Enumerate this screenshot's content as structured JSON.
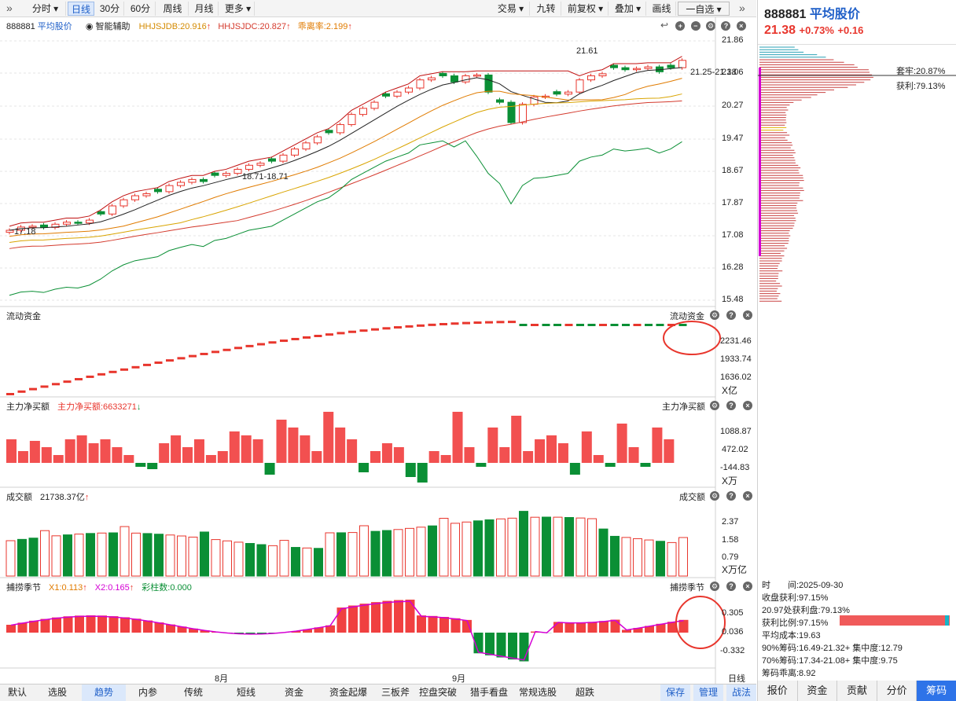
{
  "toolbar": {
    "left_buttons": [
      "分时",
      "日线",
      "30分",
      "60分",
      "周线",
      "月线",
      "更多"
    ],
    "right_buttons": [
      "交易",
      "九转",
      "前复权",
      "叠加",
      "画线",
      "一自选"
    ],
    "collapse_left": "»",
    "collapse_right": "»"
  },
  "main_legend": {
    "code": "888881",
    "name": "平均股价",
    "assist": "智能辅助",
    "hhjsjdb": "HHJSJDB:20.916",
    "hhjsjdc": "HHJSJDC:20.827",
    "rate": "乖离率:2.199"
  },
  "main_axis": [
    "21.86",
    "21.06",
    "20.27",
    "19.47",
    "18.67",
    "17.87",
    "17.08",
    "16.28",
    "15.48"
  ],
  "main_annotations": {
    "high": "21.61",
    "low": "17.18",
    "mid": "18.71-18.71",
    "range": "21.25-21.38"
  },
  "flow": {
    "title": "流动资金",
    "title_right": "流动资金",
    "axis": [
      "2231.46",
      "1933.74",
      "1636.02"
    ],
    "unit": "X亿"
  },
  "net": {
    "title": "主力净买额",
    "label": "主力净买额:6633271",
    "title_right": "主力净买额",
    "axis": [
      "1088.87",
      "472.02",
      "-144.83"
    ],
    "unit": "X万"
  },
  "vol": {
    "title": "成交额",
    "label": "21738.37亿",
    "title_right": "成交额",
    "axis": [
      "2.37",
      "1.58",
      "0.79"
    ],
    "unit": "X万亿"
  },
  "season": {
    "title": "捕捞季节",
    "x1": "X1:0.113",
    "x2": "X2:0.165",
    "bars": "彩柱数:0.000",
    "title_right": "捕捞季节",
    "axis": [
      "0.305",
      "0.036",
      "-0.332"
    ]
  },
  "date_axis": {
    "m8": "8月",
    "m9": "9月",
    "period": "日线"
  },
  "bottom_tabs": [
    "默认",
    "选股",
    "趋势",
    "内参",
    "传统",
    "短线",
    "资金",
    "资金起爆",
    "三板斧",
    "控盘突破",
    "猎手看盘",
    "常规选股",
    "超跌"
  ],
  "bottom_right": [
    "保存",
    "管理",
    "战法"
  ],
  "right_panel": {
    "code": "888881",
    "name": "平均股价",
    "price": "21.38",
    "change_pct": "+0.73%",
    "change": "+0.16",
    "trapped": "套牢:20.87%",
    "profit": "获利:79.13%",
    "info": [
      "时　　间:2025-09-30",
      "收盘获利:97.15%",
      "20.97处获利盘:79.13%",
      "获利比例:97.15%",
      "平均成本:19.63",
      "90%筹码:16.49-21.32+ 集中度:12.79",
      "70%筹码:17.34-21.08+ 集中度:9.75",
      "筹码乖离:8.92"
    ],
    "tabs": [
      "报价",
      "资金",
      "贡献",
      "分价",
      "筹码"
    ]
  },
  "colors": {
    "up": "#e8362d",
    "down": "#0a8f35",
    "blue": "#1f5fc8",
    "orange": "#e07b00",
    "magenta": "#d400d4"
  }
}
